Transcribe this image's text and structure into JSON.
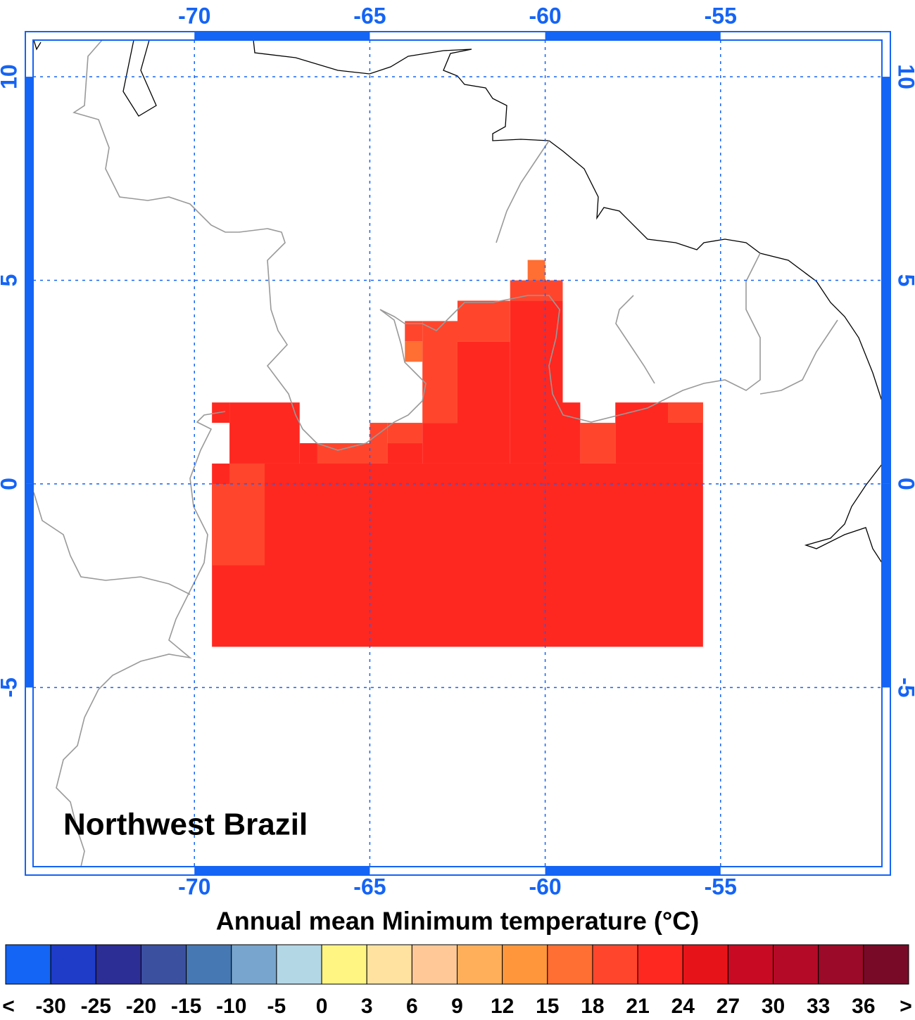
{
  "map": {
    "title": "Northwest Brazil",
    "colorbar_title": "Annual mean Minimum temperature (°C)",
    "xlim": [
      -74.6,
      -50.4
    ],
    "ylim": [
      -9.4,
      10.9
    ],
    "xticks": [
      -70,
      -65,
      -60,
      -55
    ],
    "yticks": [
      10,
      5,
      0,
      -5
    ],
    "grid": true,
    "cells": [
      {
        "lon": [
          -69.5,
          -55.5
        ],
        "lat": [
          -4,
          0.5
        ],
        "value": 22.5
      },
      {
        "lon": [
          -69.5,
          -69
        ],
        "lat": [
          1.5,
          2
        ],
        "value": 22.5
      },
      {
        "lon": [
          -69,
          -67
        ],
        "lat": [
          0.5,
          2
        ],
        "value": 22.5
      },
      {
        "lon": [
          -67,
          -65
        ],
        "lat": [
          0.5,
          1
        ],
        "value": 22.5
      },
      {
        "lon": [
          -66.5,
          -65
        ],
        "lat": [
          0.5,
          1
        ],
        "value": 19.5
      },
      {
        "lon": [
          -65,
          -64.5
        ],
        "lat": [
          0.5,
          1.5
        ],
        "value": 19.5
      },
      {
        "lon": [
          -64.5,
          -63.5
        ],
        "lat": [
          0.5,
          1
        ],
        "value": 22.5
      },
      {
        "lon": [
          -64.5,
          -63.5
        ],
        "lat": [
          1,
          1.5
        ],
        "value": 19.5
      },
      {
        "lon": [
          -63.5,
          -62.5
        ],
        "lat": [
          0.5,
          1.5
        ],
        "value": 22.5
      },
      {
        "lon": [
          -63.5,
          -62.5
        ],
        "lat": [
          1.5,
          4
        ],
        "value": 19.5
      },
      {
        "lon": [
          -64,
          -63.5
        ],
        "lat": [
          3.5,
          4
        ],
        "value": 19.5
      },
      {
        "lon": [
          -64,
          -63.5
        ],
        "lat": [
          3,
          3.5
        ],
        "value": 17
      },
      {
        "lon": [
          -62.5,
          -61
        ],
        "lat": [
          0.5,
          3.5
        ],
        "value": 22.5
      },
      {
        "lon": [
          -62.5,
          -61
        ],
        "lat": [
          3.5,
          4.5
        ],
        "value": 19.5
      },
      {
        "lon": [
          -61,
          -59.5
        ],
        "lat": [
          0.5,
          4.5
        ],
        "value": 22.5
      },
      {
        "lon": [
          -61,
          -59.5
        ],
        "lat": [
          4.5,
          5
        ],
        "value": 19.5
      },
      {
        "lon": [
          -60.5,
          -60
        ],
        "lat": [
          5,
          5.5
        ],
        "value": 17
      },
      {
        "lon": [
          -59.5,
          -59
        ],
        "lat": [
          0.5,
          2
        ],
        "value": 22.5
      },
      {
        "lon": [
          -59,
          -58
        ],
        "lat": [
          0.5,
          1.5
        ],
        "value": 19.5
      },
      {
        "lon": [
          -58,
          -55.5
        ],
        "lat": [
          0.5,
          2
        ],
        "value": 22.5
      },
      {
        "lon": [
          -56.5,
          -55.5
        ],
        "lat": [
          1.5,
          2
        ],
        "value": 19.5
      },
      {
        "lon": [
          -69.5,
          -68
        ],
        "lat": [
          -2,
          0
        ],
        "value": 19.5
      },
      {
        "lon": [
          -69,
          -68
        ],
        "lat": [
          0,
          0.5
        ],
        "value": 19.5
      }
    ],
    "colorbar": {
      "under_label": "<",
      "over_label": ">",
      "levels": [
        -30,
        -25,
        -20,
        -15,
        -10,
        -5,
        0,
        3,
        6,
        9,
        12,
        15,
        18,
        21,
        24,
        27,
        30,
        33,
        36
      ],
      "colors": [
        "#1464f5",
        "#1e3cc8",
        "#2d2d96",
        "#3c50a0",
        "#4678b4",
        "#78a5cd",
        "#b4d7e6",
        "#fff582",
        "#ffe1a0",
        "#ffc896",
        "#ffaf5a",
        "#ff963c",
        "#ff6e32",
        "#ff462d",
        "#ff2820",
        "#e61419",
        "#c80a23",
        "#b40a28",
        "#9b0a28",
        "#780a28"
      ]
    }
  }
}
